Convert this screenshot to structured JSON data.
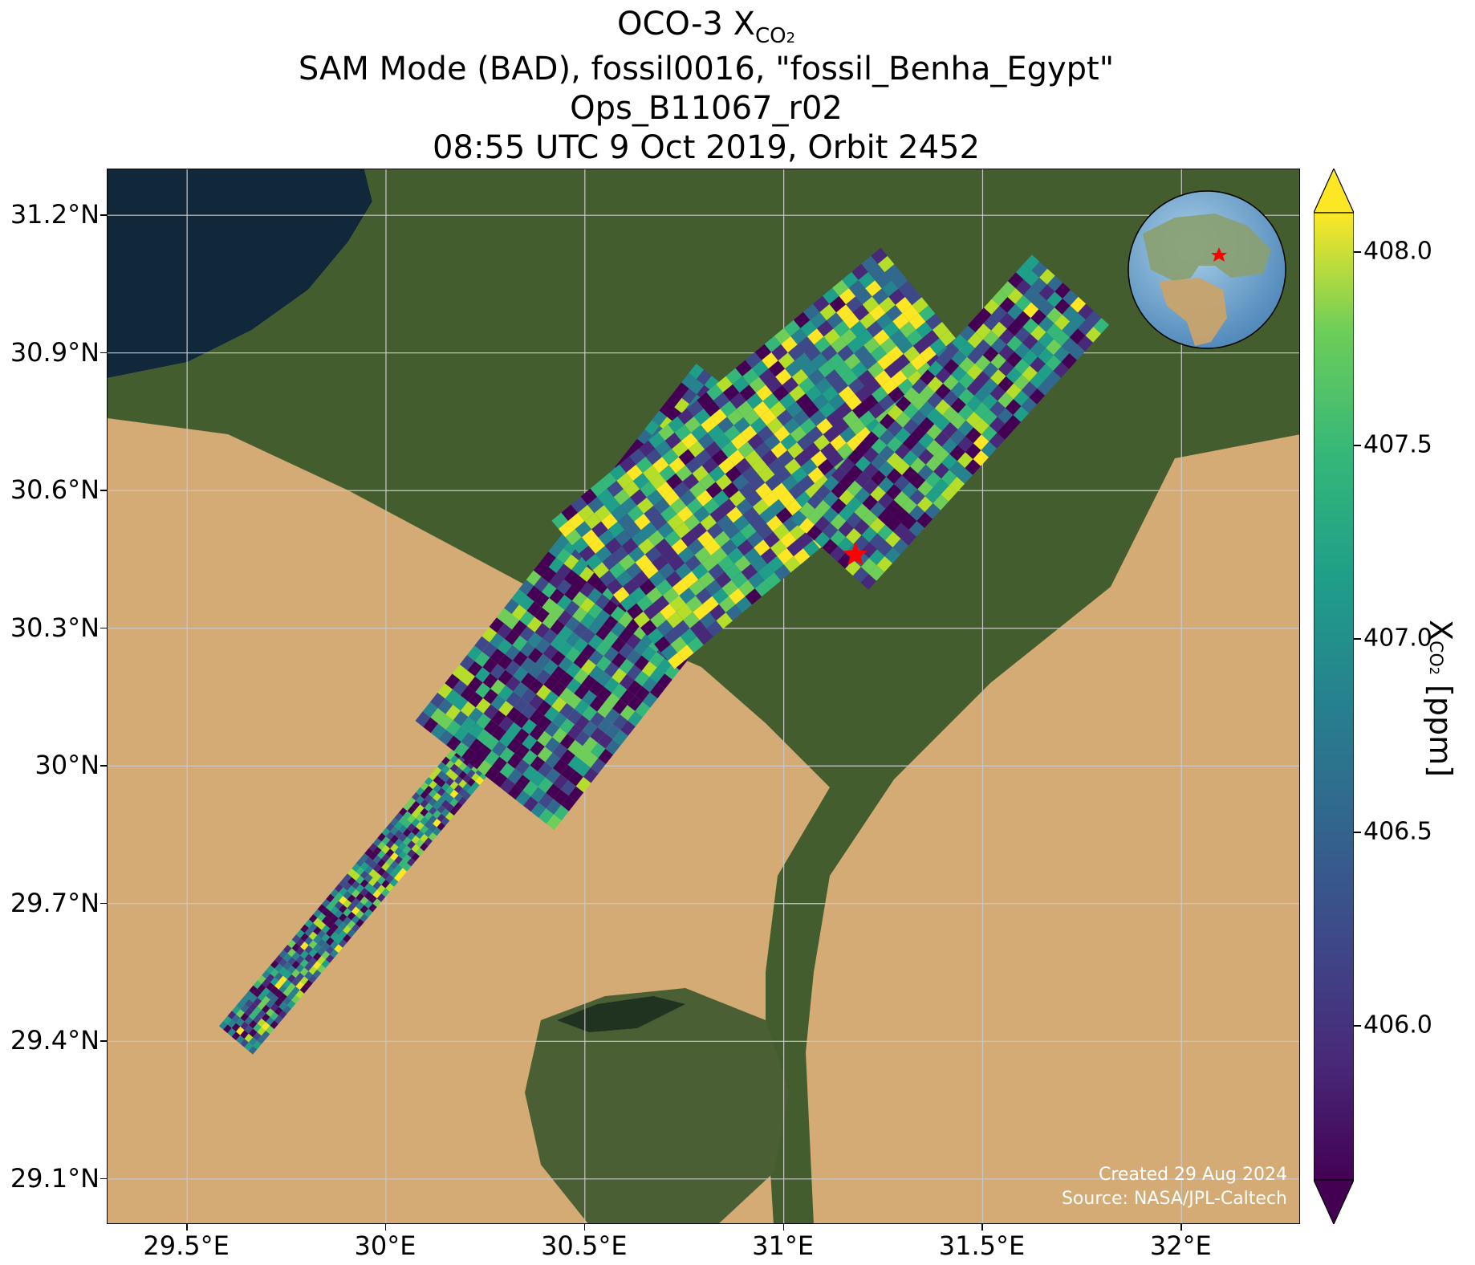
{
  "title": {
    "line1_main": "OCO-3 X",
    "line1_sub": "CO",
    "line1_sub2": "2",
    "line2": "SAM Mode (BAD), fossil0016, \"fossil_Benha_Egypt\"",
    "line3": "Ops_B11067_r02",
    "line4": "08:55 UTC 9 Oct 2019, Orbit 2452"
  },
  "map": {
    "lon_ticks": [
      "29.5°E",
      "30°E",
      "30.5°E",
      "31°E",
      "31.5°E",
      "32°E"
    ],
    "lat_ticks": [
      "31.2°N",
      "30.9°N",
      "30.6°N",
      "30.3°N",
      "30°N",
      "29.7°N",
      "29.4°N",
      "29.1°N"
    ],
    "lon_values": [
      29.5,
      30.0,
      30.5,
      31.0,
      31.5,
      32.0
    ],
    "lat_values": [
      31.2,
      30.9,
      30.6,
      30.3,
      30.0,
      29.7,
      29.4,
      29.1
    ],
    "lon_range": [
      29.3,
      32.3
    ],
    "lat_range": [
      29.0,
      31.3
    ],
    "target_marker": {
      "lon": 31.18,
      "lat": 30.46,
      "color": "#ff0000",
      "icon": "star-icon"
    },
    "credit_line1": "Created 29 Aug 2024",
    "credit_line2": "Source: NASA/JPL-Caltech"
  },
  "colorbar": {
    "ticks": [
      "408.0",
      "407.5",
      "407.0",
      "406.5",
      "406.0"
    ],
    "tick_values": [
      408.0,
      407.5,
      407.0,
      406.5,
      406.0
    ],
    "range": [
      405.6,
      408.1
    ],
    "label_main": "X",
    "label_sub": "CO",
    "label_sub2": "2",
    "label_unit": " [ppm]",
    "colormap": "viridis"
  },
  "colors": {
    "desert": "#d7b07a",
    "vegetation": "#3f5a2c",
    "sea": "#10283a"
  }
}
